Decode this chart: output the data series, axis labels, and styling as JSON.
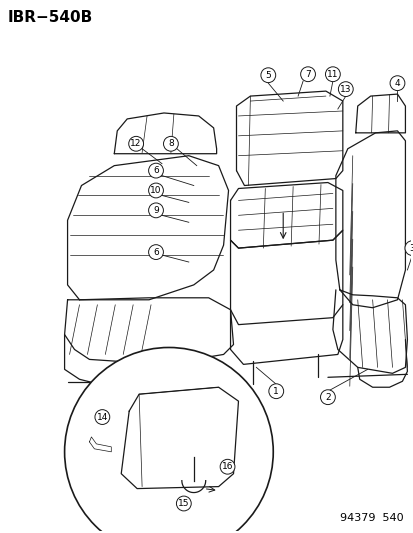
{
  "title": "IBR−540B",
  "footer": "94379  540",
  "bg_color": "#ffffff",
  "line_color": "#1a1a1a",
  "label_color": "#000000",
  "title_fontsize": 11,
  "footer_fontsize": 8,
  "callout_r": 0.018,
  "callout_fontsize": 6.5,
  "lw_main": 0.9,
  "lw_thin": 0.5
}
